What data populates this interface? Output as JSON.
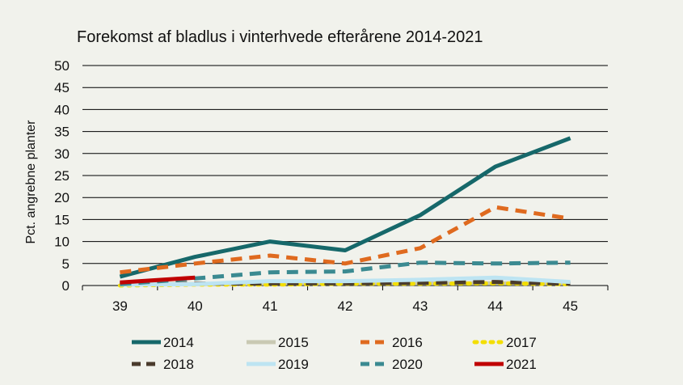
{
  "chart_data": {
    "type": "line",
    "title": "Forekomst af bladlus i vinterhvede efterårene 2014-2021",
    "xlabel": "",
    "ylabel": "Pct. angrebne planter",
    "x": [
      39,
      40,
      41,
      42,
      43,
      44,
      45
    ],
    "ylim": [
      0,
      50
    ],
    "yticks": [
      0,
      5,
      10,
      15,
      20,
      25,
      30,
      35,
      40,
      45,
      50
    ],
    "grid": true,
    "legend_position": "bottom",
    "series": [
      {
        "name": "2014",
        "color": "#16686a",
        "dash": "solid",
        "values": [
          2.0,
          6.5,
          10.0,
          8.0,
          16.0,
          27.0,
          33.5
        ]
      },
      {
        "name": "2015",
        "color": "#c9c9b3",
        "dash": "solid",
        "values": [
          0.5,
          0.3,
          0.5,
          0.5,
          0.5,
          0.5,
          0.5
        ]
      },
      {
        "name": "2016",
        "color": "#df6a1f",
        "dash": "dash",
        "values": [
          3.0,
          5.0,
          6.8,
          5.0,
          8.5,
          17.8,
          15.2
        ]
      },
      {
        "name": "2017",
        "color": "#f3de00",
        "dash": "dot",
        "values": [
          0.0,
          0.2,
          0.2,
          0.4,
          0.4,
          0.5,
          0.3
        ]
      },
      {
        "name": "2018",
        "color": "#4a3b2c",
        "dash": "dash",
        "values": [
          0.3,
          0.4,
          0.5,
          0.5,
          0.6,
          0.8,
          0.4
        ]
      },
      {
        "name": "2019",
        "color": "#bde4f2",
        "dash": "solid",
        "values": [
          0.2,
          0.3,
          1.0,
          1.0,
          1.3,
          1.8,
          0.8
        ]
      },
      {
        "name": "2020",
        "color": "#3b8a91",
        "dash": "dash",
        "values": [
          0.3,
          1.6,
          3.0,
          3.2,
          5.2,
          5.0,
          5.2
        ]
      },
      {
        "name": "2021",
        "color": "#c00000",
        "dash": "solid",
        "values": [
          0.7,
          1.8,
          null,
          null,
          null,
          null,
          null
        ]
      }
    ]
  }
}
